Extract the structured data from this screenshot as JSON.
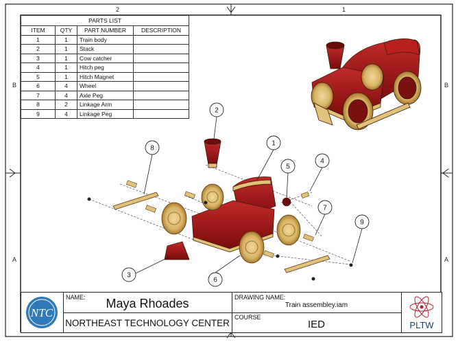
{
  "zones": {
    "top": [
      "2",
      "1"
    ],
    "left": [
      "B",
      "A"
    ],
    "right": [
      "B",
      "A"
    ]
  },
  "parts_list": {
    "title": "PARTS LIST",
    "headers": [
      "ITEM",
      "QTY",
      "PART NUMBER",
      "DESCRIPTION"
    ],
    "rows": [
      {
        "item": "1",
        "qty": "1",
        "part": "Train body",
        "desc": ""
      },
      {
        "item": "2",
        "qty": "1",
        "part": "Stack",
        "desc": ""
      },
      {
        "item": "3",
        "qty": "1",
        "part": "Cow catcher",
        "desc": ""
      },
      {
        "item": "4",
        "qty": "1",
        "part": "Hitch peg",
        "desc": ""
      },
      {
        "item": "5",
        "qty": "1",
        "part": "Hitch Magnet",
        "desc": ""
      },
      {
        "item": "6",
        "qty": "4",
        "part": "Wheel",
        "desc": ""
      },
      {
        "item": "7",
        "qty": "4",
        "part": "Axle Peg",
        "desc": ""
      },
      {
        "item": "8",
        "qty": "2",
        "part": "Linkage Arm",
        "desc": ""
      },
      {
        "item": "9",
        "qty": "4",
        "part": "Linkage Peg",
        "desc": ""
      }
    ]
  },
  "balloons": [
    "1",
    "2",
    "3",
    "4",
    "5",
    "6",
    "7",
    "8",
    "9"
  ],
  "title_block": {
    "logo_text": "NTC",
    "name_label": "NAME:",
    "name": "Maya Rhoades",
    "school": "NORTHEAST TECHNOLOGY CENTER",
    "drawing_label": "DRAWING NAME:",
    "drawing_name": "Train assembley.iam",
    "course_label": "COURSE",
    "course": "IED",
    "pltw_logo": "PLTW"
  },
  "colors": {
    "body_red": "#9e1414",
    "wood": "#e2c27a",
    "wood_dark": "#b8893a",
    "line": "#222222",
    "ntc_blue": "#2f79b8"
  }
}
